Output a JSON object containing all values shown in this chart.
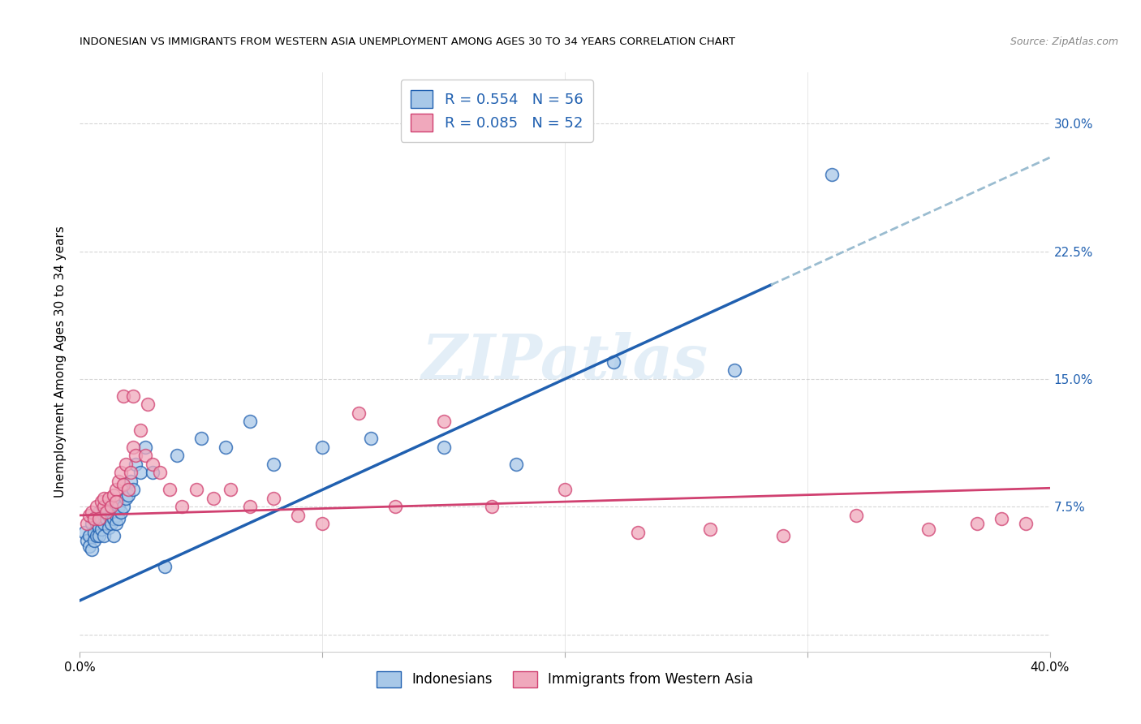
{
  "title": "INDONESIAN VS IMMIGRANTS FROM WESTERN ASIA UNEMPLOYMENT AMONG AGES 30 TO 34 YEARS CORRELATION CHART",
  "source": "Source: ZipAtlas.com",
  "ylabel": "Unemployment Among Ages 30 to 34 years",
  "xlim": [
    0.0,
    0.4
  ],
  "ylim": [
    -0.01,
    0.33
  ],
  "yticks": [
    0.0,
    0.075,
    0.15,
    0.225,
    0.3
  ],
  "ytick_labels_right": [
    "",
    "7.5%",
    "15.0%",
    "22.5%",
    "30.0%"
  ],
  "xticks": [
    0.0,
    0.1,
    0.2,
    0.3,
    0.4
  ],
  "xtick_labels": [
    "0.0%",
    "",
    "",
    "",
    "40.0%"
  ],
  "watermark": "ZIPatlas",
  "indonesian_color": "#a8c8e8",
  "western_asia_color": "#f0a8bc",
  "line_color_indonesian": "#2060b0",
  "line_color_western": "#d04070",
  "indonesian_x": [
    0.002,
    0.003,
    0.004,
    0.004,
    0.005,
    0.005,
    0.006,
    0.006,
    0.006,
    0.007,
    0.007,
    0.007,
    0.008,
    0.008,
    0.008,
    0.009,
    0.009,
    0.01,
    0.01,
    0.01,
    0.01,
    0.011,
    0.011,
    0.012,
    0.012,
    0.013,
    0.013,
    0.014,
    0.014,
    0.015,
    0.015,
    0.016,
    0.016,
    0.017,
    0.018,
    0.019,
    0.02,
    0.021,
    0.022,
    0.023,
    0.025,
    0.027,
    0.03,
    0.035,
    0.04,
    0.05,
    0.06,
    0.07,
    0.08,
    0.1,
    0.12,
    0.15,
    0.18,
    0.22,
    0.27,
    0.31
  ],
  "indonesian_y": [
    0.06,
    0.055,
    0.058,
    0.052,
    0.065,
    0.05,
    0.068,
    0.06,
    0.055,
    0.07,
    0.065,
    0.058,
    0.072,
    0.063,
    0.058,
    0.068,
    0.062,
    0.072,
    0.07,
    0.065,
    0.058,
    0.075,
    0.068,
    0.07,
    0.063,
    0.072,
    0.065,
    0.068,
    0.058,
    0.07,
    0.065,
    0.075,
    0.068,
    0.072,
    0.075,
    0.08,
    0.082,
    0.09,
    0.085,
    0.1,
    0.095,
    0.11,
    0.095,
    0.04,
    0.105,
    0.115,
    0.11,
    0.125,
    0.1,
    0.11,
    0.115,
    0.11,
    0.1,
    0.16,
    0.155,
    0.27
  ],
  "western_asia_x": [
    0.003,
    0.004,
    0.005,
    0.006,
    0.007,
    0.008,
    0.009,
    0.01,
    0.01,
    0.011,
    0.012,
    0.013,
    0.014,
    0.015,
    0.015,
    0.016,
    0.017,
    0.018,
    0.019,
    0.02,
    0.021,
    0.022,
    0.023,
    0.025,
    0.027,
    0.03,
    0.033,
    0.037,
    0.042,
    0.048,
    0.055,
    0.062,
    0.07,
    0.08,
    0.09,
    0.1,
    0.115,
    0.13,
    0.15,
    0.17,
    0.2,
    0.23,
    0.26,
    0.29,
    0.32,
    0.35,
    0.37,
    0.38,
    0.39,
    0.018,
    0.022,
    0.028
  ],
  "western_asia_y": [
    0.065,
    0.07,
    0.072,
    0.068,
    0.075,
    0.068,
    0.078,
    0.075,
    0.08,
    0.072,
    0.08,
    0.075,
    0.082,
    0.085,
    0.078,
    0.09,
    0.095,
    0.088,
    0.1,
    0.085,
    0.095,
    0.11,
    0.105,
    0.12,
    0.105,
    0.1,
    0.095,
    0.085,
    0.075,
    0.085,
    0.08,
    0.085,
    0.075,
    0.08,
    0.07,
    0.065,
    0.13,
    0.075,
    0.125,
    0.075,
    0.085,
    0.06,
    0.062,
    0.058,
    0.07,
    0.062,
    0.065,
    0.068,
    0.065,
    0.14,
    0.14,
    0.135
  ]
}
